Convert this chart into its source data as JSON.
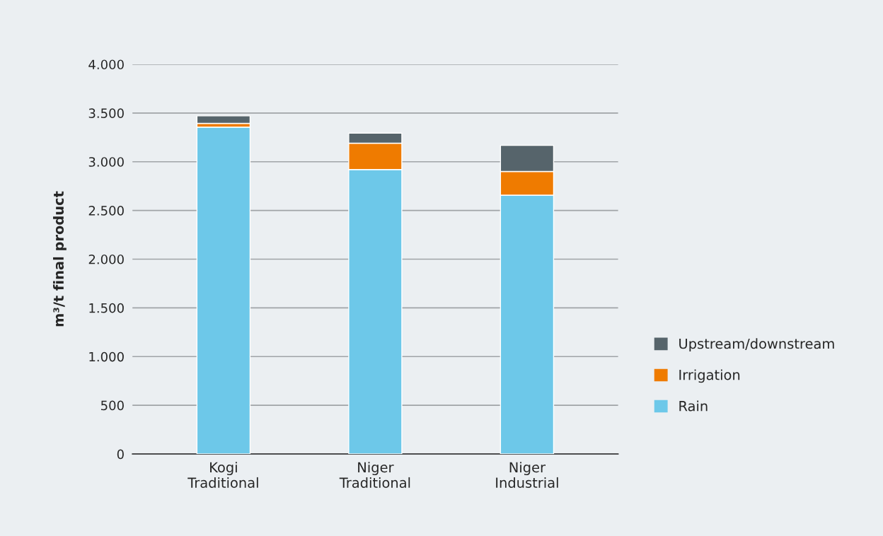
{
  "chart_data": {
    "type": "bar",
    "stacked": true,
    "ylabel": "m³/t final product",
    "categories": [
      "Kogi\nTraditional",
      "Niger\nTraditional",
      "Niger\nIndustrial"
    ],
    "series": [
      {
        "name": "Rain",
        "color": "#6dc8e9",
        "values": [
          3355,
          2920,
          2657
        ]
      },
      {
        "name": "Irrigation",
        "color": "#ef7b00",
        "values": [
          39,
          270,
          243
        ]
      },
      {
        "name": "Upstream/downstream",
        "color": "#56646b",
        "values": [
          77,
          103,
          268
        ]
      }
    ],
    "ylim": [
      0,
      4000
    ],
    "yticks": [
      {
        "value": 0,
        "label": "0"
      },
      {
        "value": 500,
        "label": "500"
      },
      {
        "value": 1000,
        "label": "1.000"
      },
      {
        "value": 1500,
        "label": "1.500"
      },
      {
        "value": 2000,
        "label": "2.000"
      },
      {
        "value": 2500,
        "label": "2.500"
      },
      {
        "value": 3000,
        "label": "3.000"
      },
      {
        "value": 3500,
        "label": "3.500"
      },
      {
        "value": 4000,
        "label": "4.000"
      }
    ],
    "grid": "y",
    "legend": "right"
  }
}
